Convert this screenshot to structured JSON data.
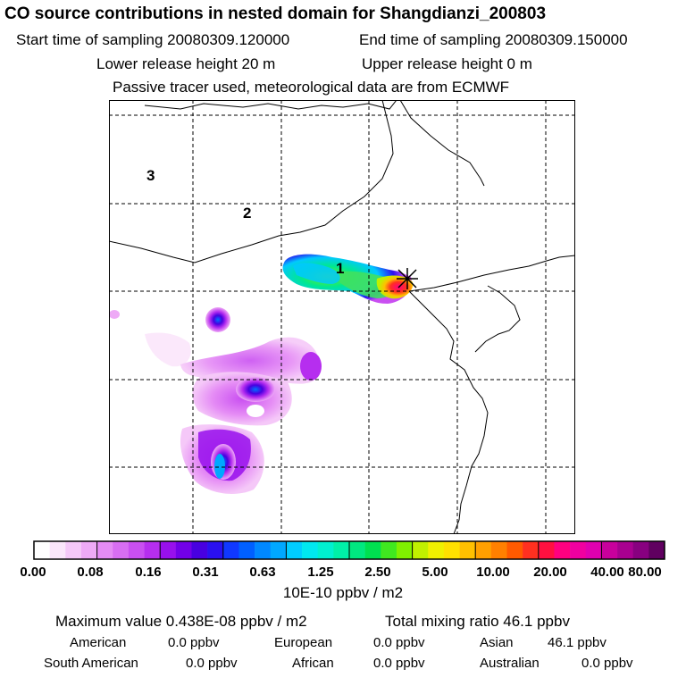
{
  "header": {
    "title": "CO  source contributions in nested domain for Shangdianzi_200803",
    "start_label": "Start time of sampling 20080309.120000",
    "end_label": "End time of sampling 20080309.150000",
    "lower_label": "Lower release height   20 m",
    "upper_label": "Upper release height    0 m",
    "note": "Passive tracer used, meteorological data are from ECMWF"
  },
  "map": {
    "domain_labels": [
      "1",
      "2",
      "3"
    ],
    "gridlines": "dashed",
    "receptor_marker": "star-cross"
  },
  "colorbar": {
    "unit": "10E-10 ppbv / m2",
    "tick_labels": [
      "0.00",
      "0.08",
      "0.16",
      "0.31",
      "0.63",
      "1.25",
      "2.50",
      "5.00",
      "10.00",
      "20.00",
      "40.00",
      "80.00"
    ],
    "colors": [
      "#ffffff",
      "#fbe6fb",
      "#f5c8f8",
      "#eeaaf6",
      "#e58cf5",
      "#d86ef3",
      "#c94ff1",
      "#b62eef",
      "#9810ec",
      "#7200e8",
      "#4800e0",
      "#2a10f0",
      "#1038ff",
      "#0060ff",
      "#0088ff",
      "#00a8ff",
      "#00cdff",
      "#00e8f0",
      "#00f0d0",
      "#00f0a8",
      "#00e880",
      "#00e050",
      "#40e820",
      "#80f000",
      "#c0f000",
      "#f0f000",
      "#ffe000",
      "#ffc000",
      "#ffa000",
      "#ff8000",
      "#ff5a00",
      "#ff3020",
      "#ff1040",
      "#ff0080",
      "#f000a0",
      "#e000b0",
      "#c8009c",
      "#a80090",
      "#880080",
      "#600060"
    ]
  },
  "summary": {
    "maximum": "Maximum value  0.438E-08 ppbv / m2",
    "total": "Total mixing ratio       46.1 ppbv",
    "regions": [
      {
        "name": "American",
        "value": "0.0 ppbv"
      },
      {
        "name": "European",
        "value": "0.0 ppbv"
      },
      {
        "name": "Asian",
        "value": "46.1 ppbv"
      },
      {
        "name": "South American",
        "value": "0.0 ppbv"
      },
      {
        "name": "African",
        "value": "0.0 ppbv"
      },
      {
        "name": "Australian",
        "value": "0.0 ppbv"
      }
    ]
  }
}
